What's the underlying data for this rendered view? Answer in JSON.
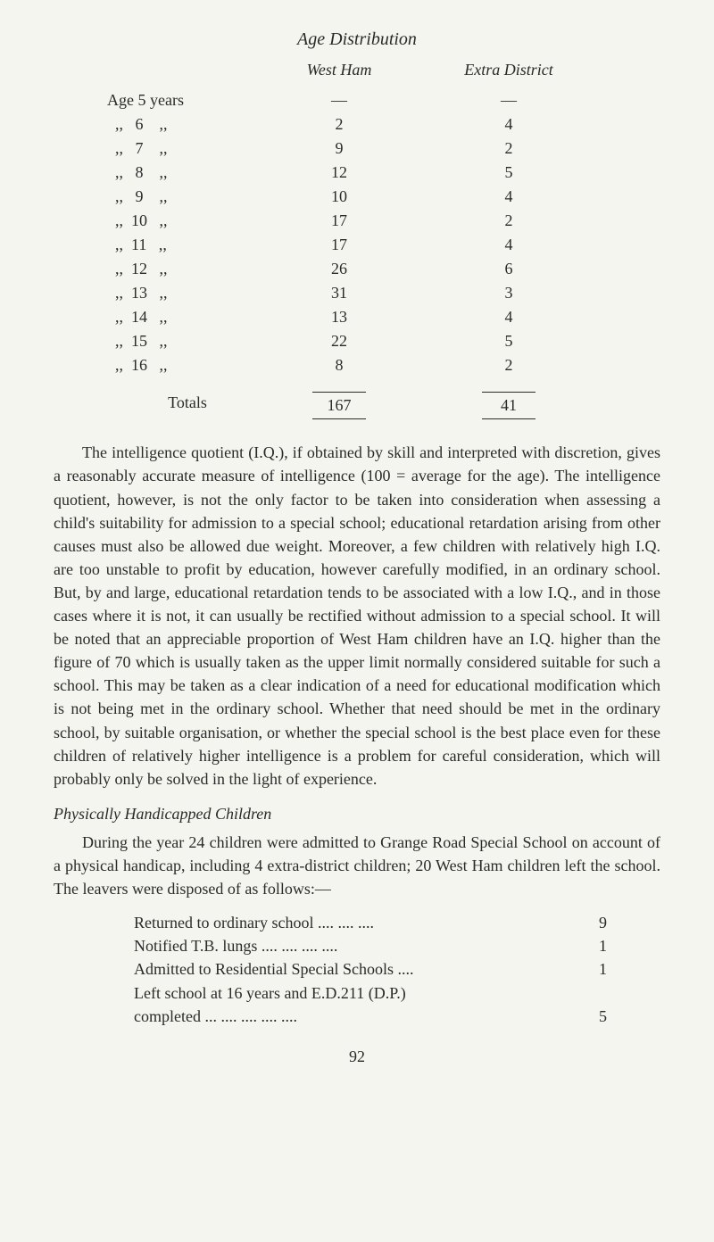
{
  "title": "Age Distribution",
  "table": {
    "header_col2": "West Ham",
    "header_col3": "Extra District",
    "rows": [
      {
        "age": "Age 5 years",
        "wh": "—",
        "ed": "—"
      },
      {
        "age": "  ,,   6    ,,",
        "wh": "2",
        "ed": "4"
      },
      {
        "age": "  ,,   7    ,,",
        "wh": "9",
        "ed": "2"
      },
      {
        "age": "  ,,   8    ,,",
        "wh": "12",
        "ed": "5"
      },
      {
        "age": "  ,,   9    ,,",
        "wh": "10",
        "ed": "4"
      },
      {
        "age": "  ,,  10   ,,",
        "wh": "17",
        "ed": "2"
      },
      {
        "age": "  ,,  11   ,,",
        "wh": "17",
        "ed": "4"
      },
      {
        "age": "  ,,  12   ,,",
        "wh": "26",
        "ed": "6"
      },
      {
        "age": "  ,,  13   ,,",
        "wh": "31",
        "ed": "3"
      },
      {
        "age": "  ,,  14   ,,",
        "wh": "13",
        "ed": "4"
      },
      {
        "age": "  ,,  15   ,,",
        "wh": "22",
        "ed": "5"
      },
      {
        "age": "  ,,  16   ,,",
        "wh": "8",
        "ed": "2"
      }
    ],
    "totals_label": "Totals",
    "totals_wh": "167",
    "totals_ed": "41"
  },
  "paragraph1": "The intelligence quotient (I.Q.), if obtained by skill and interpreted with discretion, gives a reasonably accurate measure of intelligence (100 = average for the age). The intelligence quotient, however, is not the only factor to be taken into consideration when assessing a child's suitability for admission to a special school; educational retardation arising from other causes must also be allowed due weight. Moreover, a few children with relatively high I.Q. are too unstable to profit by education, however carefully modified, in an ordinary school. But, by and large, educational retardation tends to be associated with a low I.Q., and in those cases where it is not, it can usually be rectified without admission to a special school. It will be noted that an appreciable proportion of West Ham children have an I.Q. higher than the figure of 70 which is usually taken as the upper limit normally considered suitable for such a school. This may be taken as a clear indication of a need for educational modification which is not being met in the ordinary school. Whether that need should be met in the ordinary school, by suitable organisation, or whether the special school is the best place even for these children of relatively higher intelligence is a problem for careful consideration, which will probably only be solved in the light of experience.",
  "section_heading": "Physically Handicapped Children",
  "paragraph2": "During the year 24 children were admitted to Grange Road Special School on account of a physical handicap, including 4 extra-district children; 20 West Ham children left the school. The leavers were disposed of as follows:—",
  "leavers": [
    {
      "label": "Returned to ordinary school   ....    ....    ....",
      "value": "9"
    },
    {
      "label": "Notified T.B. lungs       ....     ....     ....     ....",
      "value": "1"
    },
    {
      "label": "Admitted to Residential Special Schools    ....",
      "value": "1"
    },
    {
      "label": "Left school at 16 years and E.D.211 (D.P.)",
      "value": ""
    },
    {
      "label": "      completed       ...     ....     ....     ....     ....",
      "value": "5"
    }
  ],
  "page_number": "92"
}
